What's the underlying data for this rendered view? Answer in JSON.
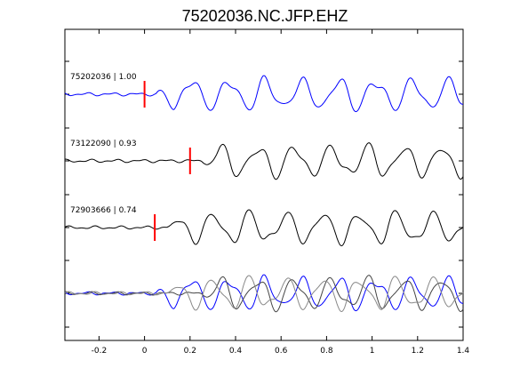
{
  "chart_data": {
    "type": "line",
    "title": "75202036.NC.JFP.EHZ",
    "xlabel": "",
    "ylabel": "",
    "xlim": [
      -0.35,
      1.4
    ],
    "x_ticks": [
      -0.2,
      0,
      0.2,
      0.4,
      0.6,
      0.8,
      1,
      1.2,
      1.4
    ],
    "x_tick_labels": [
      "-0.2",
      "0",
      "0.2",
      "0.4",
      "0.6",
      "0.8",
      "1",
      "1.2",
      "1.4"
    ],
    "grid": false,
    "legend": "none",
    "colors": {
      "reference": "#0000ff",
      "other": "#000000",
      "overlay_other": "#555555",
      "pick": "#ff0000"
    },
    "series": [
      {
        "name": "75202036 | 1.00",
        "pick_time": 0.0,
        "color": "#0000ff",
        "seed": 1
      },
      {
        "name": "73122090 | 0.93",
        "pick_time": 0.2,
        "color": "#000000",
        "seed": 2
      },
      {
        "name": "72903666 | 0.74",
        "pick_time": 0.045,
        "color": "#000000",
        "seed": 3
      }
    ],
    "overlay": {
      "series_count": 3,
      "note": ""
    }
  }
}
